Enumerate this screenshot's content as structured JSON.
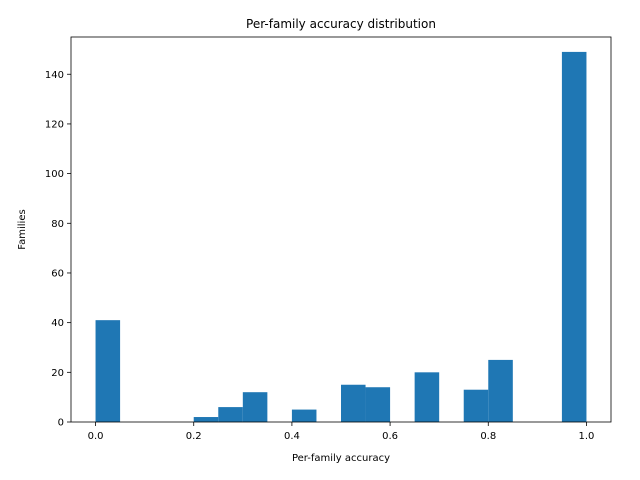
{
  "chart_data": {
    "type": "bar",
    "title": "Per-family accuracy distribution",
    "xlabel": "Per-family accuracy",
    "ylabel": "Families",
    "xlim": [
      -0.05,
      1.05
    ],
    "ylim": [
      0,
      155
    ],
    "xticks": [
      0.0,
      0.2,
      0.4,
      0.6,
      0.8,
      1.0
    ],
    "xtick_labels": [
      "0.0",
      "0.2",
      "0.4",
      "0.6",
      "0.8",
      "1.0"
    ],
    "yticks": [
      0,
      20,
      40,
      60,
      80,
      100,
      120,
      140
    ],
    "ytick_labels": [
      "0",
      "20",
      "40",
      "60",
      "80",
      "100",
      "120",
      "140"
    ],
    "bins": [
      {
        "x0": 0.0,
        "x1": 0.05,
        "value": 41
      },
      {
        "x0": 0.05,
        "x1": 0.1,
        "value": 0
      },
      {
        "x0": 0.1,
        "x1": 0.15,
        "value": 0
      },
      {
        "x0": 0.15,
        "x1": 0.2,
        "value": 0
      },
      {
        "x0": 0.2,
        "x1": 0.25,
        "value": 2
      },
      {
        "x0": 0.25,
        "x1": 0.3,
        "value": 6
      },
      {
        "x0": 0.3,
        "x1": 0.35,
        "value": 12
      },
      {
        "x0": 0.35,
        "x1": 0.4,
        "value": 0
      },
      {
        "x0": 0.4,
        "x1": 0.45,
        "value": 5
      },
      {
        "x0": 0.45,
        "x1": 0.5,
        "value": 0
      },
      {
        "x0": 0.5,
        "x1": 0.55,
        "value": 15
      },
      {
        "x0": 0.55,
        "x1": 0.6,
        "value": 14
      },
      {
        "x0": 0.6,
        "x1": 0.65,
        "value": 0
      },
      {
        "x0": 0.65,
        "x1": 0.7,
        "value": 20
      },
      {
        "x0": 0.7,
        "x1": 0.75,
        "value": 0
      },
      {
        "x0": 0.75,
        "x1": 0.8,
        "value": 13
      },
      {
        "x0": 0.8,
        "x1": 0.85,
        "value": 25
      },
      {
        "x0": 0.85,
        "x1": 0.9,
        "value": 0
      },
      {
        "x0": 0.9,
        "x1": 0.95,
        "value": 0
      },
      {
        "x0": 0.95,
        "x1": 1.0,
        "value": 149
      }
    ],
    "bar_color": "#1f77b4",
    "grid": false,
    "legend": "none"
  }
}
